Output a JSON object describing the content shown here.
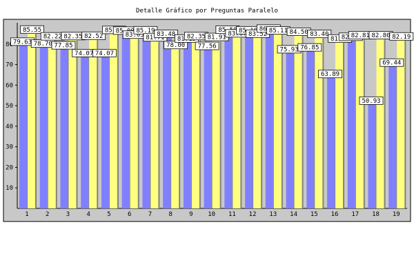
{
  "chart_data": {
    "type": "bar",
    "title": "Detalle Gráfico por Preguntas Paralelo",
    "xlabel": "",
    "ylabel": "",
    "categories": [
      "1",
      "2",
      "3",
      "4",
      "5",
      "6",
      "7",
      "8",
      "9",
      "10",
      "11",
      "12",
      "13",
      "14",
      "15",
      "16",
      "17",
      "18",
      "19"
    ],
    "series": [
      {
        "values": [
          79.63,
          78.7,
          77.85,
          74.07,
          74.07,
          85.0,
          85.19,
          83.48,
          81.15,
          77.56,
          85.5,
          85.19,
          86.0,
          75.93,
          76.85,
          63.89,
          82.0,
          50.93,
          69.44
        ],
        "color": "#8080ff"
      },
      {
        "values": [
          85.55,
          82.22,
          82.35,
          82.52,
          85.34,
          83.05,
          81.71,
          78.0,
          82.35,
          81.91,
          83.67,
          83.52,
          85.11,
          84.5,
          83.4,
          81.17,
          82.81,
          82.8,
          82.19
        ],
        "color": "#ffff80"
      }
    ],
    "ylim": [
      0,
      90
    ],
    "yticks": [
      10,
      20,
      30,
      40,
      50,
      60,
      70,
      80
    ],
    "grid": false,
    "legend": "none",
    "plot_background": "#c0c0c0",
    "value_labels": [
      [
        "79.63",
        "85.55"
      ],
      [
        "78.70",
        "82.22"
      ],
      [
        "77.85",
        "82.35"
      ],
      [
        "74.07",
        "82.52"
      ],
      [
        "74.07",
        "85.34"
      ],
      [
        "85.00",
        "83.05"
      ],
      [
        "85.19",
        "81.71"
      ],
      [
        "83.48",
        "78.00"
      ],
      [
        "81.15",
        "82.35"
      ],
      [
        "77.56",
        "81.91"
      ],
      [
        "85.50",
        "83.67"
      ],
      [
        "85.19",
        "83.52"
      ],
      [
        "86.00",
        "85.11"
      ],
      [
        "75.93",
        "84.50"
      ],
      [
        "76.85",
        "83.40"
      ],
      [
        "63.89",
        "81.17"
      ],
      [
        "82.00",
        "82.81"
      ],
      [
        "50.93",
        "82.80"
      ],
      [
        "69.44",
        "82.19"
      ]
    ]
  }
}
